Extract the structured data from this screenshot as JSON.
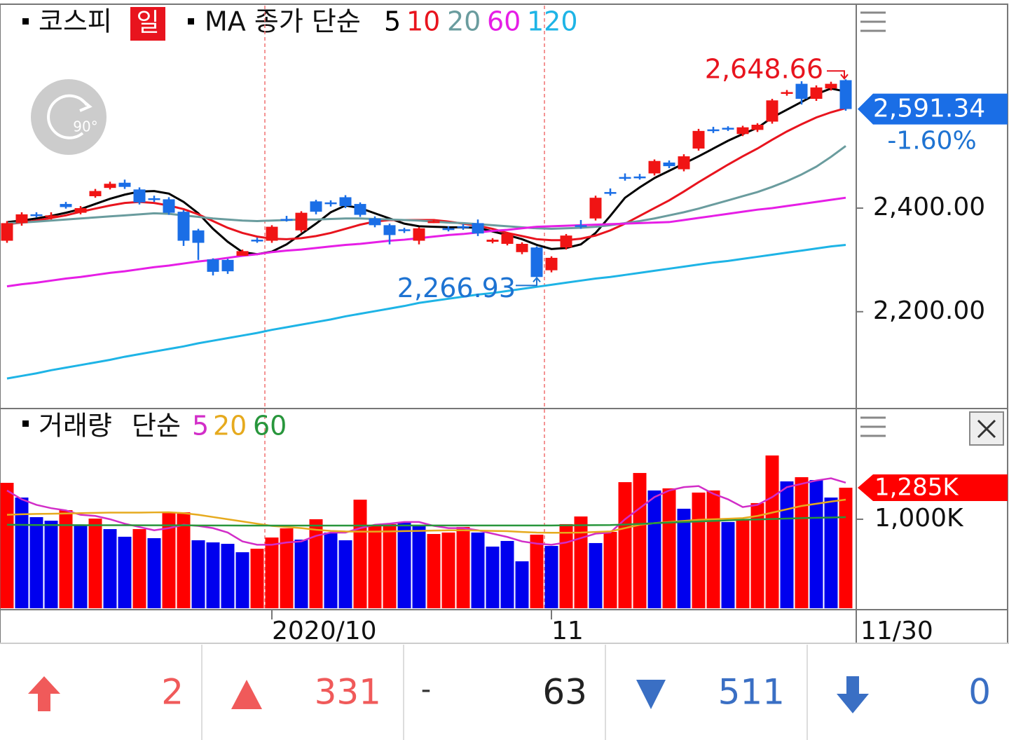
{
  "chart_data": [
    {
      "type": "candlestick",
      "title": "코스피",
      "period": "일",
      "rotate_label": "90°",
      "ma_title": "MA 종가 단순",
      "categories": [
        null,
        null,
        null,
        null,
        null,
        null,
        null,
        null,
        null,
        null,
        null,
        null,
        null,
        null,
        null,
        null,
        null,
        null,
        "2020/10",
        null,
        null,
        null,
        null,
        null,
        null,
        null,
        null,
        null,
        null,
        null,
        null,
        null,
        null,
        null,
        null,
        null,
        null,
        "11",
        null,
        null,
        null,
        null,
        null,
        null,
        null,
        null,
        null,
        null,
        null,
        null,
        null,
        null,
        null,
        null,
        null,
        null,
        null,
        "11/30"
      ],
      "open": [
        2337,
        2371,
        2388,
        2383,
        2408,
        2391,
        2423,
        2439,
        2449,
        2436,
        2419,
        2417,
        2393,
        2357,
        2301,
        2300,
        2308,
        2339,
        2337,
        2379,
        2357,
        2413,
        2411,
        2421,
        2408,
        2380,
        2367,
        2359,
        2337,
        2371,
        2361,
        2365,
        2371,
        2335,
        2331,
        2315,
        2324,
        2280,
        2324,
        2367,
        2380,
        2431,
        2460,
        2461,
        2467,
        2488,
        2475,
        2515,
        2552,
        2555,
        2543,
        2551,
        2567,
        2622,
        2640,
        2611,
        2631,
        2647
      ],
      "high": [
        2375,
        2392,
        2392,
        2392,
        2412,
        2404,
        2437,
        2451,
        2455,
        2440,
        2424,
        2421,
        2396,
        2360,
        2303,
        2302,
        2320,
        2343,
        2367,
        2385,
        2394,
        2416,
        2415,
        2425,
        2411,
        2384,
        2370,
        2362,
        2363,
        2379,
        2365,
        2369,
        2378,
        2342,
        2354,
        2334,
        2326,
        2307,
        2350,
        2377,
        2424,
        2438,
        2467,
        2466,
        2494,
        2492,
        2504,
        2553,
        2557,
        2558,
        2559,
        2564,
        2611,
        2628,
        2645,
        2637,
        2644,
        2648.66
      ],
      "low": [
        2333,
        2366,
        2382,
        2378,
        2399,
        2388,
        2420,
        2436,
        2437,
        2407,
        2412,
        2387,
        2327,
        2300,
        2270,
        2273,
        2312,
        2333,
        2333,
        2374,
        2353,
        2388,
        2403,
        2400,
        2383,
        2363,
        2330,
        2352,
        2330,
        2371,
        2355,
        2358,
        2346,
        2332,
        2328,
        2311,
        2266.93,
        2276,
        2320,
        2360,
        2376,
        2424,
        2453,
        2455,
        2463,
        2477,
        2471,
        2511,
        2545,
        2549,
        2539,
        2547,
        2563,
        2617,
        2600,
        2607,
        2627,
        2588
      ],
      "close": [
        2371,
        2388,
        2385,
        2386,
        2402,
        2400,
        2433,
        2447,
        2441,
        2411,
        2416,
        2391,
        2337,
        2333,
        2277,
        2278,
        2317,
        2337,
        2364,
        2377,
        2391,
        2393,
        2408,
        2404,
        2387,
        2367,
        2348,
        2356,
        2361,
        2375,
        2359,
        2362,
        2351,
        2339,
        2351,
        2331,
        2267,
        2304,
        2347,
        2364,
        2420,
        2428,
        2457,
        2459,
        2491,
        2481,
        2500,
        2549,
        2549,
        2553,
        2556,
        2561,
        2608,
        2624,
        2611,
        2633,
        2640,
        2591.34
      ],
      "up_color": "#f01414",
      "down_color": "#1a6ee6",
      "series": [
        {
          "name": "5",
          "color": "#000000",
          "values": [
            2373,
            2376,
            2380,
            2385,
            2391,
            2398,
            2408,
            2418,
            2426,
            2432,
            2433,
            2428,
            2412,
            2390,
            2360,
            2335,
            2315,
            2311,
            2316,
            2330,
            2350,
            2370,
            2392,
            2405,
            2400,
            2390,
            2380,
            2370,
            2365,
            2364,
            2363,
            2363,
            2362,
            2355,
            2348,
            2340,
            2329,
            2321,
            2323,
            2330,
            2352,
            2385,
            2420,
            2440,
            2458,
            2472,
            2486,
            2500,
            2515,
            2530,
            2543,
            2555,
            2575,
            2590,
            2605,
            2620,
            2631,
            2625
          ]
        },
        {
          "name": "10",
          "color": "#e8141e",
          "values": [
            2369,
            2372,
            2376,
            2381,
            2386,
            2393,
            2399,
            2405,
            2410,
            2412,
            2410,
            2405,
            2398,
            2388,
            2375,
            2362,
            2352,
            2345,
            2341,
            2340,
            2342,
            2346,
            2352,
            2360,
            2368,
            2374,
            2377,
            2377,
            2377,
            2377,
            2374,
            2370,
            2366,
            2360,
            2352,
            2346,
            2340,
            2338,
            2338,
            2341,
            2347,
            2357,
            2370,
            2385,
            2400,
            2415,
            2432,
            2450,
            2467,
            2484,
            2500,
            2515,
            2532,
            2548,
            2562,
            2575,
            2585,
            2593
          ]
        },
        {
          "name": "20",
          "color": "#6a9c9e",
          "values": [
            2371,
            2372,
            2374,
            2376,
            2378,
            2380,
            2382,
            2384,
            2386,
            2388,
            2390,
            2389,
            2386,
            2383,
            2380,
            2378,
            2376,
            2375,
            2376,
            2377,
            2378,
            2378,
            2379,
            2380,
            2380,
            2379,
            2378,
            2377,
            2376,
            2374,
            2372,
            2371,
            2369,
            2367,
            2365,
            2363,
            2361,
            2360,
            2361,
            2362,
            2364,
            2367,
            2371,
            2375,
            2380,
            2386,
            2392,
            2399,
            2407,
            2415,
            2423,
            2431,
            2441,
            2452,
            2465,
            2480,
            2499,
            2520
          ]
        },
        {
          "name": "60",
          "color": "#e61ee6",
          "values": [
            2249,
            2253,
            2256,
            2260,
            2264,
            2267,
            2271,
            2275,
            2278,
            2282,
            2286,
            2289,
            2293,
            2297,
            2300,
            2304,
            2308,
            2311,
            2315,
            2318,
            2320,
            2323,
            2326,
            2329,
            2331,
            2334,
            2337,
            2339,
            2342,
            2345,
            2348,
            2350,
            2353,
            2356,
            2358,
            2361,
            2364,
            2365,
            2366,
            2367,
            2368,
            2369,
            2370,
            2371,
            2372,
            2373,
            2377,
            2381,
            2385,
            2389,
            2393,
            2397,
            2400,
            2404,
            2408,
            2412,
            2416,
            2420
          ]
        },
        {
          "name": "120",
          "color": "#1eb4e6",
          "values": [
            2071,
            2076,
            2081,
            2087,
            2092,
            2097,
            2102,
            2107,
            2113,
            2118,
            2123,
            2128,
            2133,
            2139,
            2144,
            2149,
            2154,
            2159,
            2165,
            2170,
            2175,
            2180,
            2185,
            2191,
            2196,
            2201,
            2206,
            2211,
            2217,
            2221,
            2225,
            2229,
            2233,
            2236,
            2240,
            2244,
            2248,
            2252,
            2256,
            2260,
            2264,
            2267,
            2271,
            2275,
            2279,
            2283,
            2287,
            2291,
            2295,
            2298,
            2302,
            2306,
            2310,
            2314,
            2318,
            2322,
            2326,
            2329
          ]
        }
      ],
      "ylim": [
        2013,
        2791
      ],
      "yticks": [
        {
          "value": 2200,
          "label": "2,200.00"
        },
        {
          "value": 2400,
          "label": "2,400.00"
        }
      ],
      "high_mark": {
        "value": 2648.66,
        "label": "2,648.66"
      },
      "low_mark": {
        "value": 2266.93,
        "label": "2,266.93"
      },
      "last": {
        "value": 2591.34,
        "label": "2,591.34"
      },
      "change": {
        "value": -1.6,
        "label": "-1.60%"
      }
    },
    {
      "type": "bar",
      "title": "거래량",
      "ma_title": "단순",
      "values": [
        1329,
        1196,
        1019,
        987,
        1082,
        943,
        1006,
        911,
        842,
        911,
        829,
        1057,
        1063,
        810,
        791,
        778,
        702,
        734,
        835,
        918,
        816,
        1000,
        880,
        810,
        1177,
        943,
        956,
        968,
        937,
        867,
        880,
        930,
        880,
        753,
        804,
        620,
        861,
        759,
        956,
        1025,
        785,
        886,
        1335,
        1418,
        1260,
        1279,
        1095,
        1241,
        1260,
        975,
        1000,
        1146,
        1576,
        1342,
        1380,
        1354,
        1196,
        1285
      ],
      "bar_colors": [
        "#f00",
        "#00e",
        "#00e",
        "#00e",
        "#f00",
        "#00e",
        "#f00",
        "#00e",
        "#00e",
        "#f00",
        "#00e",
        "#f00",
        "#f00",
        "#00e",
        "#00e",
        "#00e",
        "#00e",
        "#f00",
        "#f00",
        "#f00",
        "#00e",
        "#f00",
        "#00e",
        "#00e",
        "#f00",
        "#f00",
        "#f00",
        "#00e",
        "#00e",
        "#f00",
        "#f00",
        "#f00",
        "#00e",
        "#00e",
        "#00e",
        "#00e",
        "#f00",
        "#00e",
        "#f00",
        "#f00",
        "#00e",
        "#f00",
        "#f00",
        "#f00",
        "#00e",
        "#f00",
        "#00e",
        "#f00",
        "#f00",
        "#00e",
        "#f00",
        "#f00",
        "#f00",
        "#00e",
        "#f00",
        "#00e",
        "#00e",
        "#f00"
      ],
      "series": [
        {
          "name": "5",
          "color": "#d22dc8",
          "values": [
            1260,
            1180,
            1130,
            1100,
            1080,
            1040,
            1030,
            1000,
            960,
            930,
            900,
            920,
            950,
            940,
            920,
            880,
            800,
            770,
            770,
            790,
            800,
            850,
            880,
            880,
            920,
            950,
            960,
            975,
            975,
            940,
            920,
            920,
            900,
            870,
            840,
            800,
            780,
            770,
            790,
            830,
            870,
            880,
            1000,
            1100,
            1200,
            1260,
            1290,
            1300,
            1230,
            1180,
            1110,
            1130,
            1200,
            1290,
            1320,
            1350,
            1370,
            1330
          ]
        },
        {
          "name": "20",
          "color": "#e6aa1e",
          "values": [
            1040,
            1045,
            1048,
            1050,
            1052,
            1055,
            1058,
            1060,
            1060,
            1060,
            1062,
            1063,
            1055,
            1040,
            1020,
            1000,
            980,
            960,
            940,
            930,
            920,
            905,
            895,
            890,
            888,
            888,
            890,
            893,
            895,
            898,
            900,
            900,
            898,
            895,
            892,
            885,
            880,
            878,
            878,
            880,
            885,
            890,
            920,
            950,
            965,
            975,
            985,
            995,
            1000,
            1005,
            1010,
            1030,
            1060,
            1090,
            1120,
            1140,
            1160,
            1177
          ]
        },
        {
          "name": "60",
          "color": "#28963c",
          "values": [
            950,
            949,
            948,
            948,
            947,
            947,
            946,
            946,
            946,
            945,
            945,
            945,
            945,
            944,
            944,
            944,
            943,
            943,
            943,
            943,
            943,
            943,
            943,
            943,
            943,
            944,
            944,
            944,
            944,
            944,
            944,
            944,
            944,
            944,
            944,
            944,
            944,
            944,
            945,
            946,
            947,
            948,
            952,
            958,
            964,
            970,
            975,
            980,
            985,
            990,
            995,
            998,
            1002,
            1006,
            1010,
            1013,
            1016,
            1019
          ]
        }
      ],
      "ylim": [
        196,
        2000
      ],
      "yticks": [
        {
          "value": 1000,
          "label": "1,000K"
        }
      ],
      "last": {
        "value": 1285,
        "label": "1,285K"
      }
    }
  ],
  "breadth": {
    "upper_limit": 2,
    "advancing": 331,
    "unchanged_symbol": "-",
    "unchanged": 63,
    "declining": 511,
    "lower_limit": 0
  }
}
